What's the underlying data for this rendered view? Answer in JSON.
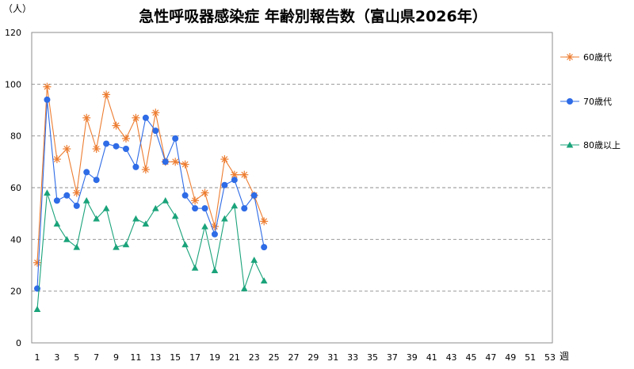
{
  "chart_data": {
    "type": "line",
    "title": "急性呼吸器感染症 年齢別報告数（富山県2026年）",
    "ylabel": "（人）",
    "xlabel": "週",
    "ylim": [
      0,
      120
    ],
    "yticks": [
      0,
      20,
      40,
      60,
      80,
      100,
      120
    ],
    "xlim": [
      1,
      53
    ],
    "xticks": [
      1,
      3,
      5,
      7,
      9,
      11,
      13,
      15,
      17,
      19,
      21,
      23,
      25,
      27,
      29,
      31,
      33,
      35,
      37,
      39,
      41,
      43,
      45,
      47,
      49,
      51,
      53
    ],
    "grid": "horizontal dashed",
    "legend_position": "right",
    "x": [
      1,
      2,
      3,
      4,
      5,
      6,
      7,
      8,
      9,
      10,
      11,
      12,
      13,
      14,
      15,
      16,
      17,
      18,
      19,
      20,
      21,
      22,
      23,
      24
    ],
    "series": [
      {
        "name": "60歳代",
        "marker": "asterisk",
        "color": "#ED7D31",
        "values": [
          31,
          99,
          71,
          75,
          58,
          87,
          75,
          96,
          84,
          79,
          87,
          67,
          89,
          70,
          70,
          69,
          55,
          58,
          45,
          71,
          65,
          65,
          57,
          47
        ]
      },
      {
        "name": "70歳代",
        "marker": "circle",
        "color": "#2E6BE6",
        "values": [
          21,
          94,
          55,
          57,
          53,
          66,
          63,
          77,
          76,
          75,
          68,
          87,
          82,
          70,
          79,
          57,
          52,
          52,
          42,
          61,
          63,
          52,
          57,
          37
        ]
      },
      {
        "name": "80歳以上",
        "marker": "triangle",
        "color": "#1AA37A",
        "values": [
          13,
          58,
          46,
          40,
          37,
          55,
          48,
          52,
          37,
          38,
          48,
          46,
          52,
          55,
          49,
          38,
          29,
          45,
          28,
          48,
          53,
          21,
          32,
          24
        ]
      }
    ]
  }
}
